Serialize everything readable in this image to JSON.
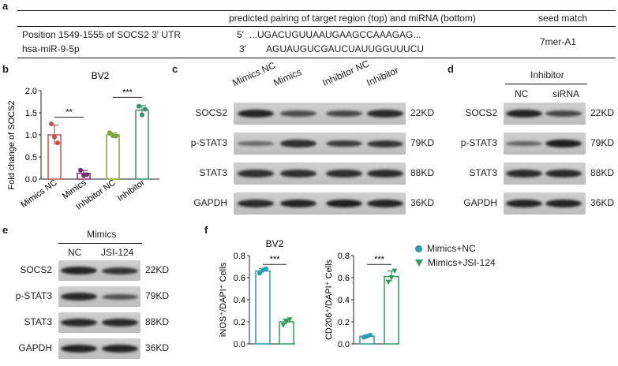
{
  "panels": {
    "a": "a",
    "b": "b",
    "c": "c",
    "d": "d",
    "e": "e",
    "f": "f"
  },
  "panel_a": {
    "header_pairing": "predicted pairing of target region (top) and miRNA (bottom)",
    "header_seed": "seed match",
    "row1_label": "Position 1549-1555 of SOCS2 3' UTR",
    "row1_prime": "5'",
    "row1_seq": "...UGACUGUUAAUGAAGCCAAAGAG...",
    "row2_label": "hsa-miR-9-5p",
    "row2_prime": "3'",
    "row2_seq": "AGUAUGUCGAUCUAUUGGUUUCU",
    "seed": "7mer-A1"
  },
  "panel_c": {
    "lanes": [
      "Mimics NC",
      "Mimics",
      "Inhibitor NC",
      "Inhibitor"
    ],
    "rows": [
      "SOCS2",
      "p-STAT3",
      "STAT3",
      "GAPDH"
    ],
    "kd": [
      "22KD",
      "79KD",
      "88KD",
      "36KD"
    ]
  },
  "panel_d": {
    "group": "Inhibitor",
    "lanes": [
      "NC",
      "siRNA"
    ],
    "rows": [
      "SOCS2",
      "p-STAT3",
      "STAT3",
      "GAPDH"
    ],
    "kd": [
      "22KD",
      "79KD",
      "88KD",
      "36KD"
    ]
  },
  "panel_e": {
    "group": "Mimics",
    "lanes": [
      "NC",
      "JSI-124"
    ],
    "rows": [
      "SOCS2",
      "p-STAT3",
      "STAT3",
      "GAPDH"
    ],
    "kd": [
      "22KD",
      "79KD",
      "88KD",
      "36KD"
    ]
  },
  "legend_f": {
    "item1": "Mimics+NC",
    "item2": "Mimics+JSI-124"
  },
  "colors": {
    "mimics_nc": "#c0504d",
    "mimics": "#7b2f6e",
    "inhibitor_nc": "#7fa33b",
    "inhibitor": "#3a8f6a",
    "nc": "#2a9bb0",
    "jsi": "#2e9e5b"
  },
  "chart_data": [
    {
      "type": "bar",
      "title": "BV2",
      "ylabel": "Fold change of SOCS2",
      "ylim": [
        0,
        2.0
      ],
      "yticks": [
        "0.0",
        "0.5",
        "1.0",
        "1.5",
        "2.0"
      ],
      "categories": [
        "Mimics NC",
        "Mimics",
        "Inhibitor NC",
        "Inhibitor"
      ],
      "values": [
        1.0,
        0.13,
        1.0,
        1.56
      ],
      "points": [
        [
          1.25,
          0.95,
          0.82
        ],
        [
          0.2,
          0.08,
          0.1
        ],
        [
          1.05,
          0.98,
          0.97
        ],
        [
          1.65,
          1.45,
          1.58
        ]
      ],
      "significance": [
        "**",
        "***"
      ]
    },
    {
      "type": "bar",
      "title": "BV2",
      "ylabel": "iNOS⁺/DAPI⁺ Cells",
      "ylim": [
        0,
        0.8
      ],
      "yticks": [
        "0.0",
        "0.2",
        "0.4",
        "0.6",
        "0.8"
      ],
      "categories": [
        "Mimics+NC",
        "Mimics+JSI-124"
      ],
      "values": [
        0.66,
        0.2
      ],
      "points": [
        [
          0.64,
          0.67,
          0.68
        ],
        [
          0.17,
          0.2,
          0.22
        ]
      ],
      "significance": [
        "***"
      ]
    },
    {
      "type": "bar",
      "title": "",
      "ylabel": "CD206⁺/DAPI⁺ Cells",
      "ylim": [
        0,
        0.8
      ],
      "yticks": [
        "0.0",
        "0.2",
        "0.4",
        "0.6",
        "0.8"
      ],
      "categories": [
        "Mimics+NC",
        "Mimics+JSI-124"
      ],
      "values": [
        0.07,
        0.61
      ],
      "points": [
        [
          0.06,
          0.07,
          0.08
        ],
        [
          0.56,
          0.6,
          0.66
        ]
      ],
      "significance": [
        "***"
      ]
    }
  ]
}
